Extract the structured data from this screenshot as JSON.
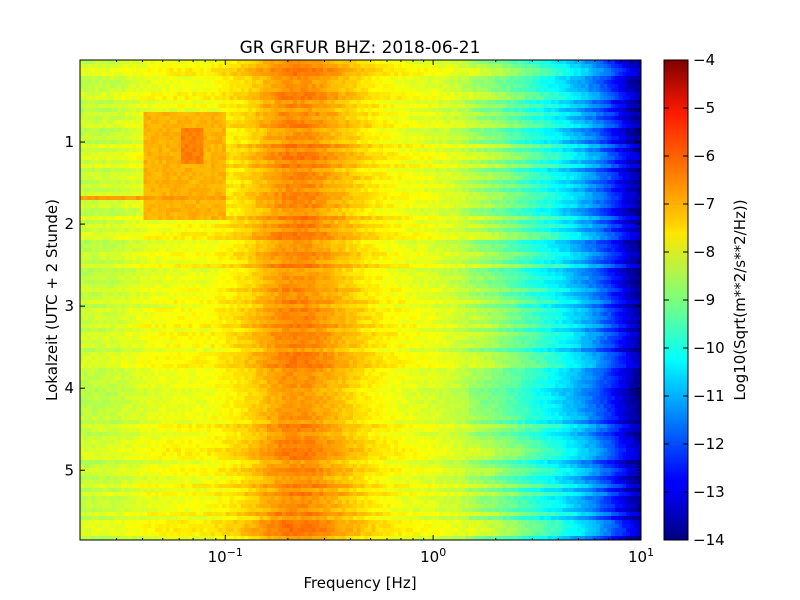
{
  "chart_data": {
    "type": "heatmap",
    "title": "GR GRFUR BHZ: 2018-06-21",
    "xlabel": "Frequency [Hz]",
    "ylabel": "Lokalzeit (UTC + 2 Stunde)",
    "x_scale": "log",
    "xlim": [
      0.02,
      10
    ],
    "ylim": [
      5.85,
      0
    ],
    "y_inverted": true,
    "x_ticks": [
      {
        "value": 0.1,
        "base": "10",
        "exp": "−1"
      },
      {
        "value": 1,
        "base": "10",
        "exp": "0"
      },
      {
        "value": 10,
        "base": "10",
        "exp": "1"
      }
    ],
    "y_ticks": [
      {
        "value": 1,
        "label": "1"
      },
      {
        "value": 2,
        "label": "2"
      },
      {
        "value": 3,
        "label": "3"
      },
      {
        "value": 4,
        "label": "4"
      },
      {
        "value": 5,
        "label": "5"
      }
    ],
    "colorbar": {
      "label": "Log10(Sqrt(m**2/s**2/Hz))",
      "min": -14,
      "max": -4,
      "colormap": "jet",
      "ticks": [
        -4,
        -5,
        -6,
        -7,
        -8,
        -9,
        -10,
        -11,
        -12,
        -13,
        -14
      ],
      "tick_labels": [
        "−4",
        "−5",
        "−6",
        "−7",
        "−8",
        "−9",
        "−10",
        "−11",
        "−12",
        "−13",
        "−14"
      ]
    },
    "spectrum_profile": {
      "frequency_hz": [
        0.02,
        0.03,
        0.045,
        0.06,
        0.08,
        0.1,
        0.13,
        0.16,
        0.2,
        0.25,
        0.3,
        0.4,
        0.5,
        0.6,
        0.8,
        1.0,
        1.3,
        1.6,
        2.0,
        2.5,
        3.0,
        4.0,
        5.0,
        6.0,
        7.0,
        8.0,
        9.0,
        10.0
      ],
      "typical_level": [
        -8.3,
        -8.2,
        -7.9,
        -7.8,
        -7.8,
        -7.6,
        -7.3,
        -6.9,
        -6.6,
        -6.6,
        -6.8,
        -7.2,
        -7.5,
        -7.7,
        -7.9,
        -8.0,
        -8.2,
        -8.5,
        -8.8,
        -9.2,
        -9.6,
        -10.2,
        -10.8,
        -11.4,
        -12.0,
        -12.7,
        -13.3,
        -13.7
      ]
    },
    "features": [
      {
        "description": "elevated band",
        "f_min": 0.04,
        "f_max": 0.1,
        "t_start": 0.65,
        "t_end": 1.95,
        "level": -7.0
      },
      {
        "description": "strongest patch",
        "f_min": 0.06,
        "f_max": 0.08,
        "t_start": 0.85,
        "t_end": 1.25,
        "level": -6.5
      },
      {
        "description": "horizontal line",
        "f_min": 0.02,
        "f_max": 0.1,
        "t_start": 1.65,
        "t_end": 1.72,
        "level": -6.8
      }
    ]
  }
}
